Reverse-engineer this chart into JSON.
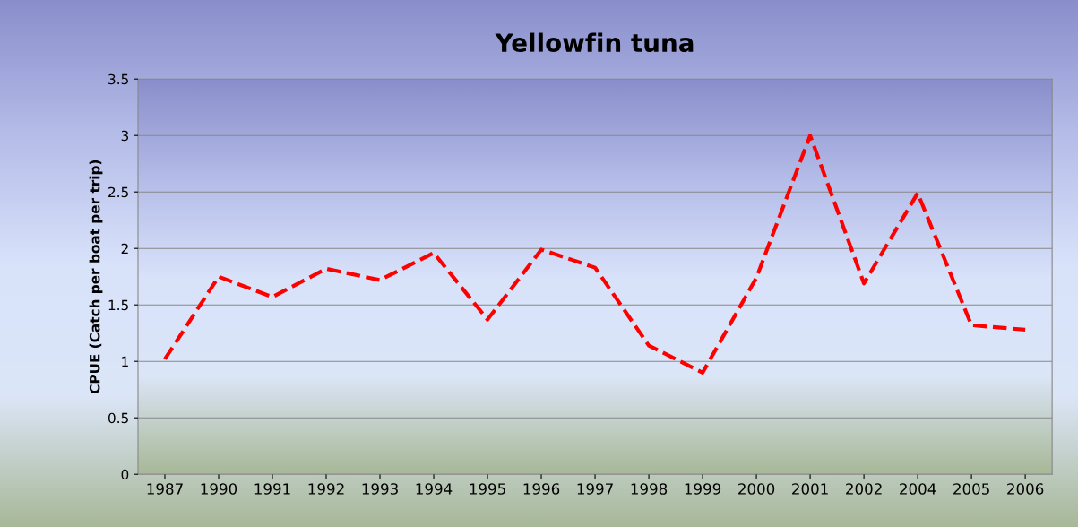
{
  "chart_data": {
    "type": "line",
    "title": "Yellowfin tuna",
    "ylabel": "CPUE (Catch per boat per trip)",
    "categories": [
      "1987",
      "1990",
      "1991",
      "1992",
      "1993",
      "1994",
      "1995",
      "1996",
      "1997",
      "1998",
      "1999",
      "2000",
      "2001",
      "2002",
      "2004",
      "2005",
      "2006"
    ],
    "series": [
      {
        "color": "#ff0000",
        "values": [
          1.02,
          1.75,
          1.57,
          1.82,
          1.72,
          1.96,
          1.37,
          1.99,
          1.83,
          1.14,
          0.9,
          1.74,
          3.0,
          1.69,
          2.49,
          1.32,
          1.28
        ]
      }
    ],
    "ylim": [
      0,
      3.5
    ],
    "yticks": [
      0,
      0.5,
      1,
      1.5,
      2,
      2.5,
      3,
      3.5
    ],
    "grid": "y",
    "line_style": "dashed",
    "marker": "none"
  }
}
